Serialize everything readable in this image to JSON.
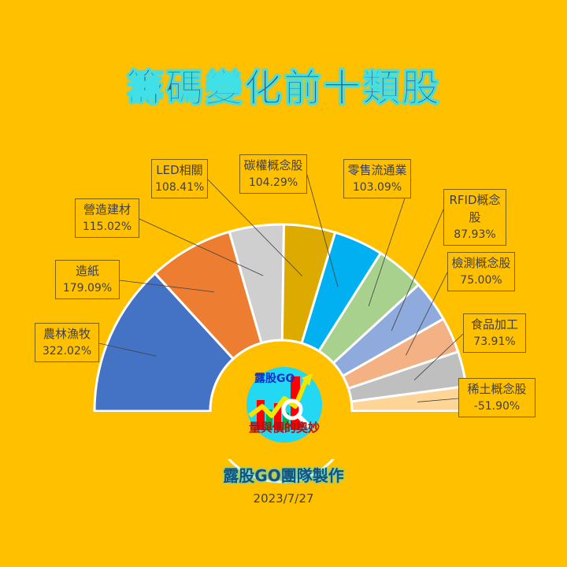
{
  "title": "籌碼變化前十類股",
  "credit": "露股GO團隊製作",
  "date": "2023/7/27",
  "logo": {
    "brand": "露股GO",
    "slogan": "量與價的奧妙"
  },
  "chart_data": {
    "type": "pie",
    "subtype": "half-doughnut",
    "title": "籌碼變化前十類股",
    "value_unit": "%",
    "note": "Slice angles proportional to absolute values; negative value rendered by magnitude",
    "categories": [
      "農林漁牧",
      "造紙",
      "營造建材",
      "LED相關",
      "碳權概念股",
      "零售流通業",
      "RFID概念股",
      "檢測概念股",
      "食品加工",
      "稀土概念股"
    ],
    "values": [
      322.02,
      179.09,
      115.02,
      108.41,
      104.29,
      103.09,
      87.93,
      75.0,
      73.91,
      -51.9
    ],
    "value_labels": [
      "322.02%",
      "179.09%",
      "115.02%",
      "108.41%",
      "104.29%",
      "103.09%",
      "87.93%",
      "75.00%",
      "73.91%",
      "-51.90%"
    ],
    "colors": [
      "#4472C4",
      "#ED7D31",
      "#CFCFCF",
      "#DDAA00",
      "#00B0F0",
      "#A9D18E",
      "#8FAADC",
      "#F4B183",
      "#BFBFBF",
      "#FFD597"
    ],
    "legend": "none",
    "data_labels": "callouts with leader lines"
  },
  "colors": {
    "background": "#FFC000",
    "title": "#44546A",
    "title_glow": "#3FE0E8",
    "label_border": "#7F6000"
  }
}
